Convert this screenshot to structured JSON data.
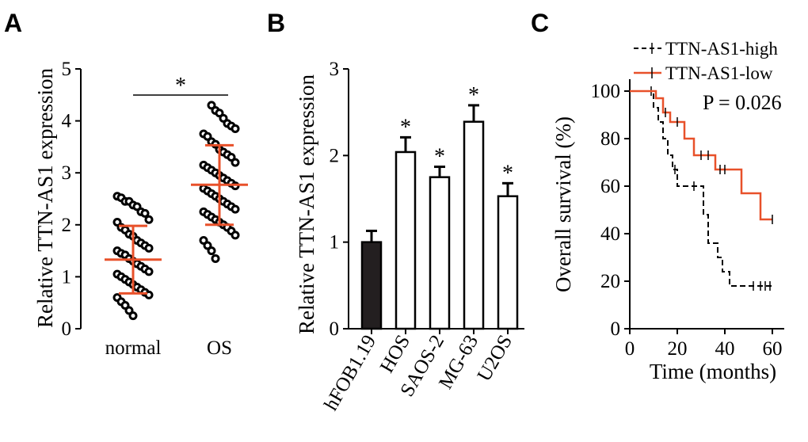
{
  "colors": {
    "accent": "#e8512a",
    "ink": "#000000",
    "bar_fill_dark": "#231f20",
    "bar_fill_open": "#ffffff"
  },
  "chart_data": [
    {
      "panel": "A",
      "type": "scatter",
      "ylabel": "Relative TTN-AS1 expression",
      "ylim": [
        0,
        5
      ],
      "yticks": [
        "0",
        "1",
        "2",
        "3",
        "4",
        "5"
      ],
      "categories": [
        "normal",
        "OS"
      ],
      "significance": "*",
      "groups": [
        {
          "name": "normal",
          "mean": 1.33,
          "sd_low": 0.68,
          "sd_high": 1.98,
          "points": [
            2.55,
            2.52,
            2.45,
            2.45,
            2.38,
            2.35,
            2.25,
            2.22,
            2.1,
            2.05,
            1.95,
            1.9,
            1.82,
            1.78,
            1.7,
            1.65,
            1.6,
            1.55,
            1.5,
            1.45,
            1.42,
            1.35,
            1.3,
            1.25,
            1.2,
            1.15,
            1.1,
            1.05,
            1.0,
            0.95,
            0.9,
            0.85,
            0.8,
            0.75,
            0.7,
            0.65,
            0.6,
            0.52,
            0.45,
            0.35,
            0.25
          ]
        },
        {
          "name": "OS",
          "mean": 2.77,
          "sd_low": 2.0,
          "sd_high": 3.53,
          "points": [
            4.3,
            4.2,
            4.15,
            4.05,
            3.95,
            3.9,
            3.85,
            3.75,
            3.7,
            3.6,
            3.55,
            3.45,
            3.4,
            3.35,
            3.3,
            3.2,
            3.15,
            3.1,
            3.05,
            3.0,
            2.95,
            2.9,
            2.85,
            2.8,
            2.75,
            2.7,
            2.65,
            2.6,
            2.55,
            2.5,
            2.45,
            2.4,
            2.35,
            2.3,
            2.25,
            2.2,
            2.15,
            2.1,
            2.05,
            2.0,
            1.95,
            1.88,
            1.8,
            1.7,
            1.6,
            1.5,
            1.35
          ]
        }
      ]
    },
    {
      "panel": "B",
      "type": "bar",
      "ylabel": "Relative TTN-AS1 expression",
      "ylim": [
        0,
        3
      ],
      "yticks": [
        "0",
        "1",
        "2",
        "3"
      ],
      "categories": [
        "hFOB1.19",
        "HOS",
        "SAOS-2",
        "MG-63",
        "U2OS"
      ],
      "values": [
        1.0,
        2.04,
        1.75,
        2.39,
        1.53
      ],
      "errors": [
        0.13,
        0.17,
        0.12,
        0.19,
        0.15
      ],
      "significance": [
        "",
        "*",
        "*",
        "*",
        "*"
      ]
    },
    {
      "panel": "C",
      "type": "line",
      "subtype": "kaplan-meier",
      "xlabel": "Time (months)",
      "ylabel": "Overall survival (%)",
      "xlim": [
        0,
        65
      ],
      "ylim": [
        0,
        105
      ],
      "xticks": [
        "0",
        "20",
        "40",
        "60"
      ],
      "yticks": [
        "0",
        "20",
        "40",
        "60",
        "80",
        "100"
      ],
      "annotation": "P = 0.026",
      "series": [
        {
          "name": "TTN-AS1-high",
          "style": "dashed",
          "steps": [
            [
              0,
              100
            ],
            [
              9,
              100
            ],
            [
              10,
              93
            ],
            [
              12,
              87
            ],
            [
              14,
              80
            ],
            [
              16,
              73
            ],
            [
              18,
              67
            ],
            [
              20,
              60
            ],
            [
              30,
              60
            ],
            [
              31,
              48
            ],
            [
              33,
              36
            ],
            [
              37,
              30
            ],
            [
              39,
              24
            ],
            [
              42,
              18
            ],
            [
              60,
              18
            ]
          ],
          "censors": [
            [
              9,
              100
            ],
            [
              19,
              67
            ],
            [
              27,
              60
            ],
            [
              52,
              18
            ],
            [
              55,
              18
            ],
            [
              57,
              18
            ],
            [
              59,
              18
            ]
          ]
        },
        {
          "name": "TTN-AS1-low",
          "style": "solid",
          "steps": [
            [
              0,
              100
            ],
            [
              11,
              100
            ],
            [
              11,
              97
            ],
            [
              14,
              91
            ],
            [
              17,
              87
            ],
            [
              22,
              87
            ],
            [
              23,
              80
            ],
            [
              27,
              73
            ],
            [
              35,
              73
            ],
            [
              36,
              67
            ],
            [
              42,
              67
            ],
            [
              47,
              57
            ],
            [
              53,
              57
            ],
            [
              55,
              46
            ],
            [
              60,
              46
            ]
          ],
          "censors": [
            [
              15,
              91
            ],
            [
              20,
              87
            ],
            [
              30,
              73
            ],
            [
              33,
              73
            ],
            [
              38,
              67
            ],
            [
              40,
              67
            ],
            [
              60,
              46
            ]
          ]
        }
      ]
    }
  ]
}
